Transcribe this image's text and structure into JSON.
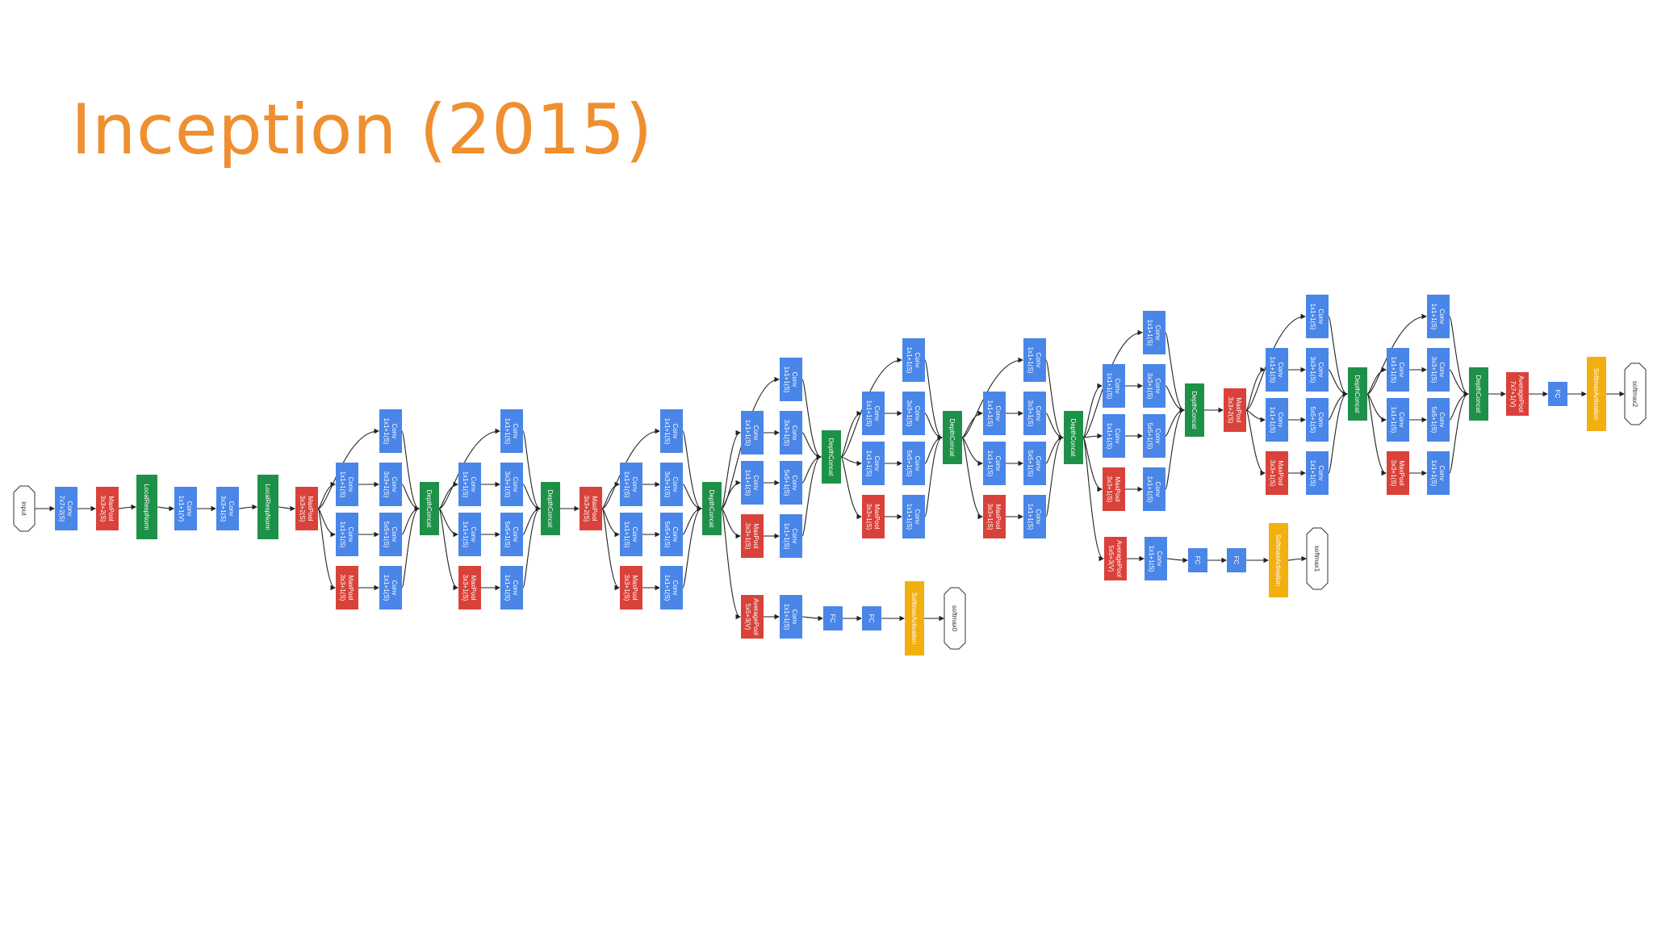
{
  "title": "Inception (2015)",
  "colors": {
    "title": "#EF8F2F",
    "conv": "#4A86E8",
    "pool": "#D9423A",
    "concat": "#1E9148",
    "softmax_activation": "#F2B010",
    "terminal_fill": "#ffffff",
    "edge": "#222222"
  },
  "node_labels": {
    "input": "input",
    "conv_7x7": [
      "Conv",
      "7x7+2(S)"
    ],
    "maxpool_3x3_2s": [
      "MaxPool",
      "3x3+2(S)"
    ],
    "local_resp_norm": "LocalRespNorm",
    "conv_1x1_v": [
      "Conv",
      "1x1+1(V)"
    ],
    "conv_3x3": [
      "Conv",
      "3x3+1(S)"
    ],
    "conv_1x1": [
      "Conv",
      "1x1+1(S)"
    ],
    "conv_5x5": [
      "Conv",
      "5x5+1(S)"
    ],
    "maxpool_3x3_1s": [
      "MaxPool",
      "3x3+1(S)"
    ],
    "depth_concat": "DepthConcat",
    "avgpool_5x5": [
      "AveragePool",
      "5x5+3(V)"
    ],
    "avgpool_7x7": [
      "AveragePool",
      "7x7+1(V)"
    ],
    "fc": "FC",
    "softmax_activation": "SoftmaxActivation",
    "softmax0": "softmax0",
    "softmax1": "softmax1",
    "softmax2": "softmax2"
  }
}
